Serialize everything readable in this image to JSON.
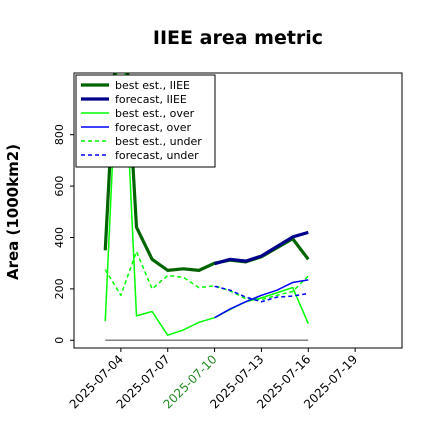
{
  "chart_data": {
    "type": "line",
    "title": "IIEE area metric",
    "xlabel": "",
    "ylabel": "Area (1000km2)",
    "ylim": [
      -30,
      1040
    ],
    "yticks": [
      0,
      200,
      400,
      600,
      800
    ],
    "xticks": [
      "2025-07-04",
      "2025-07-07",
      "2025-07-10",
      "2025-07-13",
      "2025-07-16",
      "2025-07-19"
    ],
    "highlight_xtick": "2025-07-10",
    "highlight_color": "#228B22",
    "x_range_days_from_first_tick": [
      -3,
      18
    ],
    "grid": false,
    "legend_position": "upper-left",
    "series": [
      {
        "name": "best est., IIEE",
        "color": "#006400",
        "style": "solid",
        "width": "thick",
        "x": [
          "2025-07-03",
          "2025-07-04",
          "2025-07-05",
          "2025-07-06",
          "2025-07-07",
          "2025-07-08",
          "2025-07-09",
          "2025-07-10",
          "2025-07-11",
          "2025-07-12",
          "2025-07-13",
          "2025-07-14",
          "2025-07-15",
          "2025-07-16"
        ],
        "values": [
          350,
          1500,
          440,
          315,
          272,
          278,
          272,
          300,
          312,
          305,
          325,
          360,
          395,
          315
        ]
      },
      {
        "name": "forecast, IIEE",
        "color": "#00008B",
        "style": "solid",
        "width": "thick",
        "x": [
          "2025-07-10",
          "2025-07-11",
          "2025-07-12",
          "2025-07-13",
          "2025-07-14",
          "2025-07-15",
          "2025-07-16"
        ],
        "values": [
          298,
          315,
          308,
          328,
          365,
          402,
          420
        ]
      },
      {
        "name": "best est., over",
        "color": "#00FF00",
        "style": "solid",
        "width": "thin",
        "x": [
          "2025-07-03",
          "2025-07-04",
          "2025-07-05",
          "2025-07-06",
          "2025-07-07",
          "2025-07-08",
          "2025-07-09",
          "2025-07-10",
          "2025-07-11",
          "2025-07-12",
          "2025-07-13",
          "2025-07-14",
          "2025-07-15",
          "2025-07-16"
        ],
        "values": [
          75,
          1400,
          95,
          112,
          20,
          40,
          70,
          88,
          120,
          150,
          165,
          185,
          205,
          65
        ]
      },
      {
        "name": "forecast, over",
        "color": "#0000FF",
        "style": "solid",
        "width": "thin",
        "x": [
          "2025-07-10",
          "2025-07-11",
          "2025-07-12",
          "2025-07-13",
          "2025-07-14",
          "2025-07-15",
          "2025-07-16"
        ],
        "values": [
          88,
          122,
          150,
          175,
          195,
          225,
          235
        ]
      },
      {
        "name": "best est., under",
        "color": "#00FF00",
        "style": "dashed",
        "width": "thin",
        "x": [
          "2025-07-03",
          "2025-07-04",
          "2025-07-05",
          "2025-07-06",
          "2025-07-07",
          "2025-07-08",
          "2025-07-09",
          "2025-07-10",
          "2025-07-11",
          "2025-07-12",
          "2025-07-13",
          "2025-07-14",
          "2025-07-15",
          "2025-07-16"
        ],
        "values": [
          275,
          175,
          345,
          200,
          252,
          245,
          205,
          212,
          192,
          162,
          158,
          175,
          190,
          250
        ]
      },
      {
        "name": "forecast, under",
        "color": "#0000FF",
        "style": "dashed",
        "width": "thin",
        "x": [
          "2025-07-10",
          "2025-07-11",
          "2025-07-12",
          "2025-07-13",
          "2025-07-14",
          "2025-07-15",
          "2025-07-16"
        ],
        "values": [
          210,
          195,
          168,
          150,
          168,
          172,
          182
        ]
      },
      {
        "color": "#808080",
        "style": "solid",
        "width": "thin",
        "x": [
          "2025-07-03",
          "2025-07-16"
        ],
        "values": [
          0,
          0
        ]
      }
    ]
  }
}
